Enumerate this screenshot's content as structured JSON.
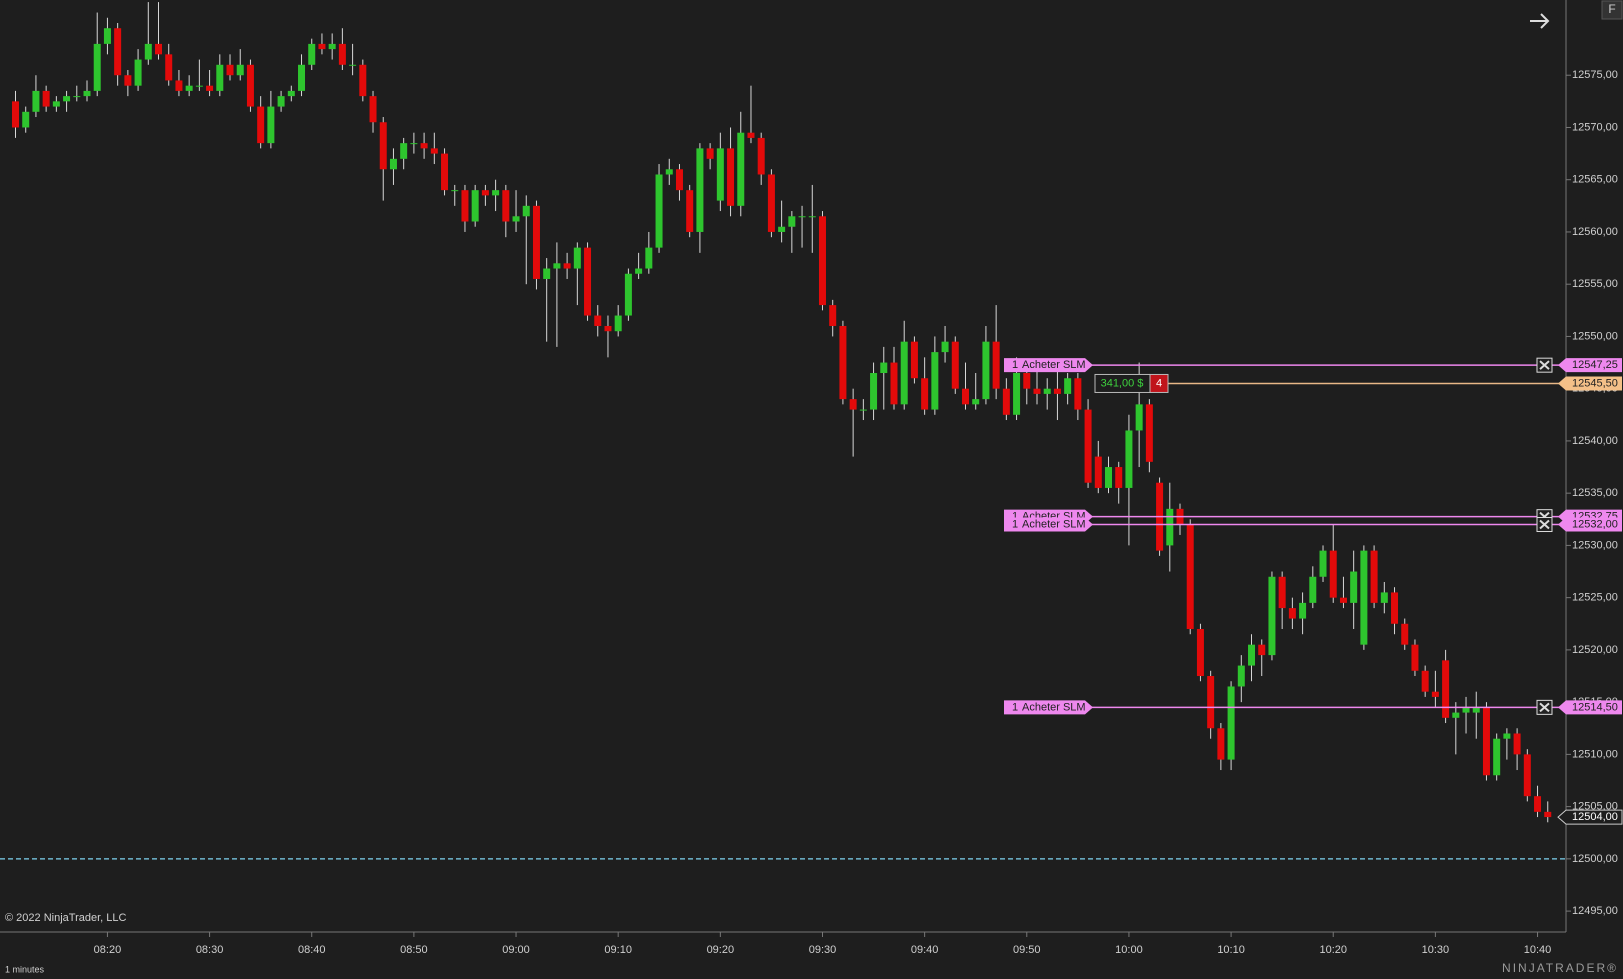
{
  "chart_data": {
    "type": "candlestick",
    "up_color": "#2ec52e",
    "down_color": "#e30a0a",
    "ylim": [
      12493,
      12582.2
    ],
    "yticks": [
      {
        "value": 12495,
        "label": "12495,00"
      },
      {
        "value": 12500,
        "label": "12500,00"
      },
      {
        "value": 12505,
        "label": "12505,00"
      },
      {
        "value": 12510,
        "label": "12510,00"
      },
      {
        "value": 12515,
        "label": "12515,00"
      },
      {
        "value": 12520,
        "label": "12520,00"
      },
      {
        "value": 12525,
        "label": "12525,00"
      },
      {
        "value": 12530,
        "label": "12530,00"
      },
      {
        "value": 12535,
        "label": "12535,00"
      },
      {
        "value": 12540,
        "label": "12540,00"
      },
      {
        "value": 12545,
        "label": "12545,00"
      },
      {
        "value": 12550,
        "label": "12550,00"
      },
      {
        "value": 12555,
        "label": "12555,00"
      },
      {
        "value": 12560,
        "label": "12560,00"
      },
      {
        "value": 12565,
        "label": "12565,00"
      },
      {
        "value": 12570,
        "label": "12570,00"
      },
      {
        "value": 12575,
        "label": "12575,00"
      }
    ],
    "x": [
      "08:11",
      "08:12",
      "08:13",
      "08:14",
      "08:15",
      "08:16",
      "08:17",
      "08:18",
      "08:19",
      "08:20",
      "08:21",
      "08:22",
      "08:23",
      "08:24",
      "08:25",
      "08:26",
      "08:27",
      "08:28",
      "08:29",
      "08:30",
      "08:31",
      "08:32",
      "08:33",
      "08:34",
      "08:35",
      "08:36",
      "08:37",
      "08:38",
      "08:39",
      "08:40",
      "08:41",
      "08:42",
      "08:43",
      "08:44",
      "08:45",
      "08:46",
      "08:47",
      "08:48",
      "08:49",
      "08:50",
      "08:51",
      "08:52",
      "08:53",
      "08:54",
      "08:55",
      "08:56",
      "08:57",
      "08:58",
      "08:59",
      "09:00",
      "09:01",
      "09:02",
      "09:03",
      "09:04",
      "09:05",
      "09:06",
      "09:07",
      "09:08",
      "09:09",
      "09:10",
      "09:11",
      "09:12",
      "09:13",
      "09:14",
      "09:15",
      "09:16",
      "09:17",
      "09:18",
      "09:19",
      "09:20",
      "09:21",
      "09:22",
      "09:23",
      "09:24",
      "09:25",
      "09:26",
      "09:27",
      "09:28",
      "09:29",
      "09:30",
      "09:31",
      "09:32",
      "09:33",
      "09:34",
      "09:35",
      "09:36",
      "09:37",
      "09:38",
      "09:39",
      "09:40",
      "09:41",
      "09:42",
      "09:43",
      "09:44",
      "09:45",
      "09:46",
      "09:47",
      "09:48",
      "09:49",
      "09:50",
      "09:51",
      "09:52",
      "09:53",
      "09:54",
      "09:55",
      "09:56",
      "09:57",
      "09:58",
      "09:59",
      "10:00",
      "10:01",
      "10:02",
      "10:03",
      "10:04",
      "10:05",
      "10:06",
      "10:07",
      "10:08",
      "10:09",
      "10:10",
      "10:11",
      "10:12",
      "10:13",
      "10:14",
      "10:15",
      "10:16",
      "10:17",
      "10:18",
      "10:19",
      "10:20",
      "10:21",
      "10:22",
      "10:23",
      "10:24",
      "10:25",
      "10:26",
      "10:27",
      "10:28",
      "10:29",
      "10:30",
      "10:31",
      "10:32",
      "10:33",
      "10:34",
      "10:35",
      "10:36",
      "10:37",
      "10:38",
      "10:39",
      "10:40",
      "10:41"
    ],
    "ohlc": [
      [
        12572.5,
        12573.5,
        12569,
        12570
      ],
      [
        12570,
        12572,
        12569.5,
        12571.5
      ],
      [
        12571.5,
        12575,
        12571,
        12573.5
      ],
      [
        12573.5,
        12574,
        12571.5,
        12572
      ],
      [
        12572,
        12573,
        12571.5,
        12572.5
      ],
      [
        12572.5,
        12573.5,
        12571.5,
        12573
      ],
      [
        12573,
        12574,
        12572.5,
        12573
      ],
      [
        12573,
        12574.5,
        12572.5,
        12573.5
      ],
      [
        12573.5,
        12581,
        12573,
        12578
      ],
      [
        12578,
        12580.5,
        12577,
        12579.5
      ],
      [
        12579.5,
        12580,
        12574,
        12575
      ],
      [
        12575,
        12575.5,
        12573,
        12574
      ],
      [
        12574,
        12577.5,
        12573.5,
        12576.5
      ],
      [
        12576.5,
        12582,
        12576,
        12578
      ],
      [
        12578,
        12582,
        12576.5,
        12577
      ],
      [
        12577,
        12578,
        12574,
        12574.5
      ],
      [
        12574.5,
        12575.5,
        12573,
        12573.5
      ],
      [
        12573.5,
        12575,
        12573,
        12574
      ],
      [
        12574,
        12576.5,
        12573.5,
        12574
      ],
      [
        12574,
        12575.5,
        12573,
        12573.5
      ],
      [
        12573.5,
        12577,
        12573,
        12576
      ],
      [
        12576,
        12577,
        12574.5,
        12575
      ],
      [
        12575,
        12577.5,
        12574.5,
        12576
      ],
      [
        12576,
        12576.5,
        12571.5,
        12572
      ],
      [
        12572,
        12573,
        12568,
        12568.5
      ],
      [
        12568.5,
        12573.5,
        12568,
        12572
      ],
      [
        12572,
        12573.5,
        12571.5,
        12573
      ],
      [
        12573,
        12574,
        12572.5,
        12573.5
      ],
      [
        12573.5,
        12577,
        12573,
        12576
      ],
      [
        12576,
        12578.5,
        12575.5,
        12578
      ],
      [
        12578,
        12579,
        12577,
        12577.5
      ],
      [
        12577.5,
        12579,
        12576.5,
        12578
      ],
      [
        12578,
        12579.5,
        12575.5,
        12576
      ],
      [
        12576,
        12578,
        12575,
        12576
      ],
      [
        12576,
        12576.5,
        12572.5,
        12573
      ],
      [
        12573,
        12573.5,
        12569.5,
        12570.5
      ],
      [
        12570.5,
        12571,
        12563,
        12566
      ],
      [
        12566,
        12568,
        12564.5,
        12567
      ],
      [
        12567,
        12569,
        12566,
        12568.5
      ],
      [
        12568.5,
        12569.5,
        12567.5,
        12568.5
      ],
      [
        12568.5,
        12569.5,
        12567,
        12568
      ],
      [
        12568,
        12569.5,
        12566.5,
        12567.5
      ],
      [
        12567.5,
        12568,
        12563.5,
        12564
      ],
      [
        12564,
        12564.5,
        12562.5,
        12564
      ],
      [
        12564,
        12564.5,
        12560,
        12561
      ],
      [
        12561,
        12564.5,
        12560.5,
        12564
      ],
      [
        12564,
        12564.5,
        12562.5,
        12563.5
      ],
      [
        12563.5,
        12565,
        12562,
        12564
      ],
      [
        12564,
        12564.5,
        12559.5,
        12561
      ],
      [
        12561,
        12564,
        12560,
        12561.5
      ],
      [
        12561.5,
        12563.5,
        12555,
        12562.5
      ],
      [
        12562.5,
        12563,
        12554.5,
        12555.5
      ],
      [
        12555.5,
        12557.5,
        12549.5,
        12556.5
      ],
      [
        12556.5,
        12559,
        12549,
        12557
      ],
      [
        12557,
        12558,
        12555.5,
        12556.5
      ],
      [
        12556.5,
        12559,
        12553,
        12558.5
      ],
      [
        12558.5,
        12559,
        12551.5,
        12552
      ],
      [
        12552,
        12553,
        12550,
        12551
      ],
      [
        12551,
        12552,
        12548,
        12550.5
      ],
      [
        12550.5,
        12553,
        12550,
        12552
      ],
      [
        12552,
        12556.5,
        12551.5,
        12556
      ],
      [
        12556,
        12558,
        12555.5,
        12556.5
      ],
      [
        12556.5,
        12560,
        12556,
        12558.5
      ],
      [
        12558.5,
        12566.5,
        12558,
        12565.5
      ],
      [
        12565.5,
        12567,
        12564.5,
        12566
      ],
      [
        12566,
        12566.5,
        12563,
        12564
      ],
      [
        12564,
        12564.5,
        12559.5,
        12560
      ],
      [
        12560,
        12568.5,
        12558,
        12568
      ],
      [
        12568,
        12568.5,
        12566,
        12567
      ],
      [
        12563,
        12569.5,
        12562,
        12568
      ],
      [
        12568,
        12570,
        12561.5,
        12562.5
      ],
      [
        12562.5,
        12571.5,
        12561.5,
        12569.5
      ],
      [
        12569.5,
        12574,
        12568.5,
        12569
      ],
      [
        12569,
        12569.5,
        12564.5,
        12565.5
      ],
      [
        12565.5,
        12566,
        12559.5,
        12560
      ],
      [
        12560,
        12563,
        12559,
        12560.5
      ],
      [
        12560.5,
        12562,
        12558,
        12561.5
      ],
      [
        12561.5,
        12562.5,
        12558.5,
        12561.5
      ],
      [
        12561.5,
        12564.5,
        12558,
        12561.5
      ],
      [
        12561.5,
        12562,
        12552.5,
        12553
      ],
      [
        12553,
        12553.5,
        12550,
        12551
      ],
      [
        12551,
        12551.5,
        12543.5,
        12544
      ],
      [
        12544,
        12545,
        12538.5,
        12543
      ],
      [
        12543,
        12544,
        12542,
        12543
      ],
      [
        12543,
        12547.5,
        12542,
        12546.5
      ],
      [
        12546.5,
        12549,
        12543,
        12547.5
      ],
      [
        12547.5,
        12549,
        12543,
        12543.5
      ],
      [
        12543.5,
        12551.5,
        12543,
        12549.5
      ],
      [
        12549.5,
        12550,
        12545.5,
        12546
      ],
      [
        12546,
        12548,
        12542.5,
        12543
      ],
      [
        12543,
        12550,
        12542.5,
        12548.5
      ],
      [
        12548.5,
        12551,
        12547.5,
        12549.5
      ],
      [
        12549.5,
        12550,
        12544.5,
        12545
      ],
      [
        12545,
        12547.5,
        12543,
        12543.5
      ],
      [
        12543.5,
        12546.5,
        12543,
        12544
      ],
      [
        12544,
        12551,
        12543.5,
        12549.5
      ],
      [
        12549.5,
        12553,
        12544,
        12545
      ],
      [
        12545,
        12546,
        12542,
        12542.5
      ],
      [
        12542.5,
        12548,
        12542,
        12546.5
      ],
      [
        12546.5,
        12547.5,
        12543.5,
        12545
      ],
      [
        12545,
        12547,
        12543.5,
        12544.5
      ],
      [
        12544.5,
        12546,
        12543,
        12545
      ],
      [
        12545,
        12547.5,
        12542,
        12544.5
      ],
      [
        12544.5,
        12546.5,
        12543.5,
        12546
      ],
      [
        12546,
        12546.5,
        12542,
        12543
      ],
      [
        12543,
        12544,
        12535.5,
        12536
      ],
      [
        12538.5,
        12540,
        12535,
        12535.5
      ],
      [
        12535.5,
        12538.5,
        12535,
        12537.5
      ],
      [
        12537.5,
        12538,
        12534,
        12535.5
      ],
      [
        12535.5,
        12542.5,
        12530,
        12541
      ],
      [
        12541,
        12547.5,
        12537.5,
        12543.5
      ],
      [
        12543.5,
        12544,
        12537,
        12538
      ],
      [
        12536,
        12536.5,
        12529,
        12529.5
      ],
      [
        12530,
        12536,
        12527.5,
        12533.5
      ],
      [
        12533.5,
        12534,
        12531,
        12532
      ],
      [
        12532,
        12532.5,
        12521.5,
        12522
      ],
      [
        12522,
        12522.5,
        12517,
        12517.5
      ],
      [
        12517.5,
        12518,
        12511.5,
        12512.5
      ],
      [
        12512.5,
        12513,
        12508.5,
        12509.5
      ],
      [
        12509.5,
        12517,
        12508.5,
        12516.5
      ],
      [
        12516.5,
        12519.5,
        12515,
        12518.5
      ],
      [
        12518.5,
        12521.5,
        12517,
        12520.5
      ],
      [
        12520.5,
        12521,
        12517.5,
        12519.5
      ],
      [
        12519.5,
        12527.5,
        12519,
        12527
      ],
      [
        12527,
        12527.5,
        12522,
        12524
      ],
      [
        12524,
        12525,
        12522,
        12523
      ],
      [
        12523,
        12525.5,
        12521.5,
        12524.5
      ],
      [
        12524.5,
        12528,
        12524,
        12527
      ],
      [
        12527,
        12530,
        12526.5,
        12529.5
      ],
      [
        12529.5,
        12532,
        12524.5,
        12525
      ],
      [
        12525,
        12527,
        12524,
        12524.5
      ],
      [
        12524.5,
        12529.5,
        12522,
        12527.5
      ],
      [
        12520.5,
        12530,
        12520,
        12529.5
      ],
      [
        12529.5,
        12530,
        12524,
        12524.5
      ],
      [
        12524.5,
        12526.5,
        12523.5,
        12525.5
      ],
      [
        12525.5,
        12526,
        12521.5,
        12522.5
      ],
      [
        12522.5,
        12523,
        12520,
        12520.5
      ],
      [
        12520.5,
        12521,
        12517.5,
        12518
      ],
      [
        12518,
        12518.5,
        12515.5,
        12516
      ],
      [
        12516,
        12518,
        12514.5,
        12515.5
      ],
      [
        12519,
        12520,
        12513,
        12513.5
      ],
      [
        12513.5,
        12515,
        12510,
        12514
      ],
      [
        12514,
        12515.5,
        12512,
        12514.5
      ],
      [
        12514,
        12516,
        12511.5,
        12514.5
      ],
      [
        12514.5,
        12515,
        12507.5,
        12508
      ],
      [
        12508,
        12512,
        12507.5,
        12511.5
      ],
      [
        12511.5,
        12512.5,
        12509.5,
        12512
      ],
      [
        12512,
        12512.5,
        12508.5,
        12510
      ],
      [
        12510,
        12510.5,
        12505.5,
        12506
      ],
      [
        12506,
        12507,
        12504,
        12504.5
      ],
      [
        12504.5,
        12505.5,
        12503.5,
        12504
      ]
    ],
    "hline": 12500,
    "orders": [
      {
        "quantity": 1,
        "label": "Acheter SLM",
        "price": {
          "value": 12547.25,
          "label": "12547,25"
        }
      },
      {
        "quantity": 1,
        "label": "Acheter SLM",
        "price": {
          "value": 12532.75,
          "label": "12532,75"
        }
      },
      {
        "quantity": 1,
        "label": "Acheter SLM",
        "price": {
          "value": 12532.0,
          "label": "12532,00"
        }
      },
      {
        "quantity": 1,
        "label": "Acheter SLM",
        "price": {
          "value": 12514.5,
          "label": "12514,50"
        }
      }
    ],
    "position": {
      "pnl": "341,00 $",
      "quantity": 4,
      "price": {
        "value": 12545.5,
        "label": "12545,50"
      }
    },
    "last_price": {
      "value": 12504,
      "label": "12504,00"
    },
    "copyright": "© 2022 NinjaTrader, LLC",
    "interval": "1 minutes",
    "brand": "NINJATRADER®",
    "button": "F"
  }
}
